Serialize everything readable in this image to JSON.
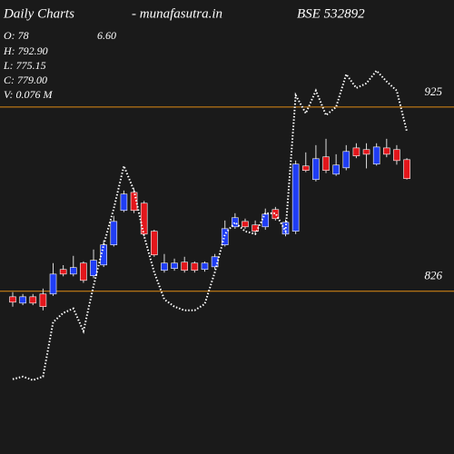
{
  "chart_data": {
    "type": "candlestick",
    "title": "Daily Charts",
    "subtitle": "-  munafasutra.in",
    "symbol": "BSE 532892",
    "annotations": [
      "O: 78",
      "6.60",
      "H: 792.90",
      "L: 775.15",
      "C: 779.00",
      "V: 0.076  M"
    ],
    "ylim": [
      738.5,
      982.5
    ],
    "levels": [
      925,
      826
    ],
    "level_color": "#e08c14",
    "up_color": "#1f3df5",
    "down_color": "#e3161b",
    "open": [
      823.0,
      819.6,
      823.0,
      824.5,
      824.5,
      837.7,
      835.2,
      841.1,
      834.3,
      840.1,
      850.9,
      869.4,
      879.1,
      873.3,
      858.2,
      837.2,
      838.2,
      841.6,
      841.1,
      837.7,
      839.1,
      850.9,
      860.6,
      863.5,
      861.6,
      860.6,
      869.9,
      856.7,
      858.2,
      893.3,
      886.0,
      898.2,
      888.9,
      892.3,
      903.0,
      902.1,
      894.3,
      903.0,
      902.1,
      896.7
    ],
    "high": [
      825.5,
      824.5,
      824.5,
      827.4,
      841.1,
      840.0,
      845.0,
      842.0,
      848.4,
      853.3,
      866.5,
      880.1,
      881.1,
      874.5,
      859.0,
      846.0,
      843.5,
      844.5,
      842.0,
      842.0,
      846.0,
      864.0,
      867.9,
      865.0,
      864.0,
      870.4,
      871.3,
      864.5,
      896.2,
      900.6,
      904.5,
      907.9,
      899.6,
      904.5,
      905.5,
      905.5,
      905.5,
      907.9,
      904.5,
      897.5
    ],
    "low": [
      817.7,
      818.5,
      818.5,
      815.7,
      823.5,
      834.0,
      834.0,
      830.5,
      833.0,
      839.0,
      850.0,
      868.5,
      868.0,
      855.5,
      844.5,
      836.0,
      837.0,
      836.0,
      836.0,
      836.5,
      838.0,
      850.0,
      859.5,
      859.5,
      856.7,
      859.0,
      864.0,
      855.5,
      856.7,
      890.0,
      885.0,
      889.5,
      888.0,
      891.0,
      897.5,
      892.0,
      893.5,
      898.0,
      894.0,
      886.0
    ],
    "close": [
      820.1,
      823.0,
      819.6,
      817.7,
      835.2,
      835.2,
      838.7,
      831.8,
      842.6,
      850.9,
      863.5,
      878.2,
      869.4,
      856.7,
      845.5,
      841.1,
      841.1,
      837.2,
      837.2,
      841.1,
      844.5,
      859.6,
      865.5,
      860.6,
      858.2,
      867.4,
      865.0,
      863.0,
      894.3,
      890.9,
      897.2,
      890.9,
      893.8,
      901.1,
      898.7,
      899.6,
      903.5,
      899.6,
      896.2,
      886.5
    ],
    "line": {
      "color": "#ffffff",
      "style": "dotted",
      "values": [
        778.7,
        780.1,
        778.2,
        780.1,
        809.4,
        814.3,
        816.7,
        804.5,
        828.9,
        850.9,
        870.4,
        893.3,
        880.1,
        855.7,
        836.2,
        821.6,
        817.7,
        815.7,
        815.7,
        819.1,
        836.2,
        856.7,
        863.0,
        858.2,
        856.7,
        867.9,
        867.9,
        858.2,
        931.3,
        921.6,
        933.8,
        920.6,
        925.0,
        942.6,
        935.2,
        937.7,
        944.5,
        938.7,
        933.8,
        911.8
      ]
    }
  }
}
